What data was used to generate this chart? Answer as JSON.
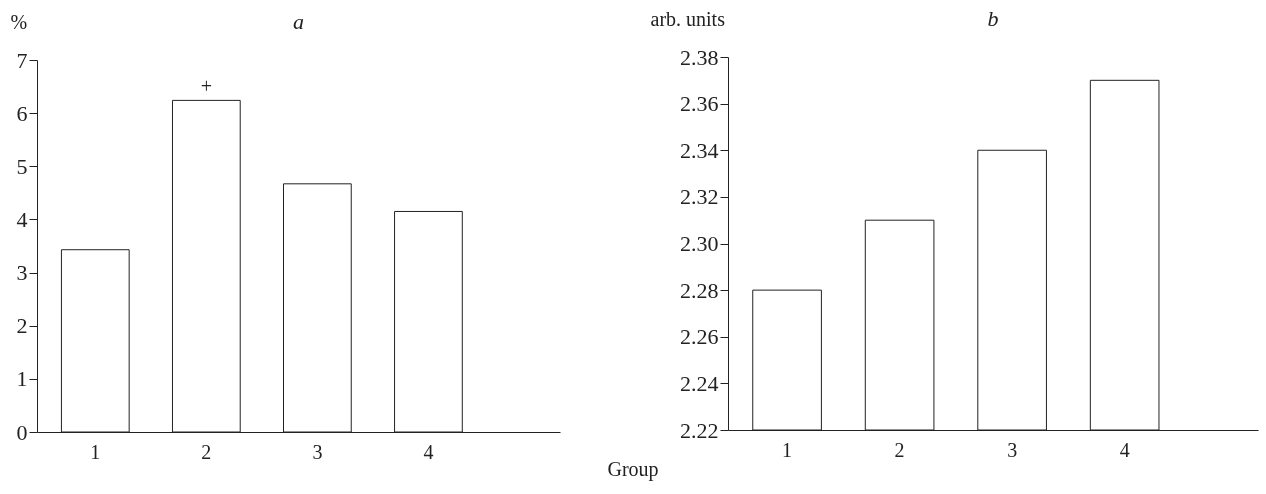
{
  "chart_data": [
    {
      "type": "bar",
      "title": "a",
      "ylabel": "%",
      "xlabel": "Group",
      "categories": [
        "1",
        "2",
        "3",
        "4"
      ],
      "values": [
        3.43,
        6.24,
        4.67,
        4.15
      ],
      "color": "#ffffff",
      "ylim": [
        0,
        7
      ],
      "yticks": [
        0,
        1,
        2,
        3,
        4,
        5,
        6,
        7
      ],
      "grid": false,
      "annotations": [
        {
          "text": "+",
          "x": "2",
          "y": 6.24
        }
      ]
    },
    {
      "type": "bar",
      "title": "b",
      "ylabel": "arb. units",
      "categories": [
        "1",
        "2",
        "3",
        "4"
      ],
      "values": [
        2.28,
        2.31,
        2.34,
        2.37
      ],
      "color": "#ffffff",
      "ylim": [
        2.22,
        2.38
      ],
      "yticks": [
        2.22,
        2.24,
        2.26,
        2.28,
        {
          "value": 2.3,
          "label": "2.30"
        },
        2.32,
        2.34,
        2.36,
        2.38
      ],
      "grid": false
    }
  ]
}
